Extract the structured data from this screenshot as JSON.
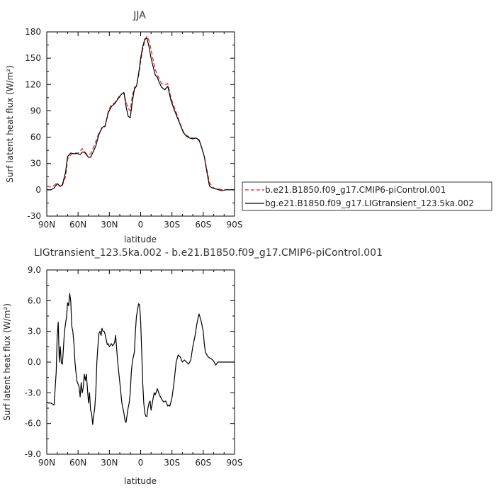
{
  "chart_data": [
    {
      "type": "line",
      "title": "JJA",
      "xlabel": "latitude",
      "ylabel": "Surf latent heat flux (W/m²)",
      "xlim": [
        90,
        -90
      ],
      "ylim": [
        -30,
        180
      ],
      "xticks": [
        90,
        60,
        30,
        0,
        -30,
        -60,
        -90
      ],
      "xticklabels": [
        "90N",
        "60N",
        "30N",
        "0",
        "30S",
        "60S",
        "90S"
      ],
      "yticks": [
        -30,
        0,
        30,
        60,
        90,
        120,
        150,
        180
      ],
      "yticklabels": [
        "-30",
        "0",
        "30",
        "60",
        "90",
        "120",
        "150",
        "180"
      ],
      "series": [
        {
          "name": "b.e21.B1850.f09_g17.CMIP6-piControl.001",
          "color": "#e41a1c",
          "dash": "dashed",
          "x": [
            90,
            86,
            83,
            80,
            77,
            75,
            72,
            70,
            67,
            64,
            62,
            60,
            58,
            56,
            54,
            52,
            50,
            48,
            46,
            43,
            40,
            37,
            34,
            31,
            28,
            25,
            22,
            19,
            16,
            14,
            12,
            10,
            8,
            6,
            4,
            2,
            0,
            -2,
            -4,
            -6,
            -8,
            -10,
            -12,
            -14,
            -16,
            -18,
            -20,
            -23,
            -26,
            -29,
            -32,
            -35,
            -38,
            -41,
            -44,
            -47,
            -50,
            -53,
            -56,
            -58,
            -61,
            -64,
            -66,
            -69,
            -72,
            -75,
            -78,
            -81,
            -84,
            -87,
            -90
          ],
          "values": [
            4,
            3,
            5,
            8,
            3,
            5,
            15,
            35,
            40,
            42,
            41,
            42,
            44,
            47,
            44,
            41,
            40,
            41,
            46,
            55,
            65,
            70,
            72,
            90,
            97,
            99,
            104,
            109,
            110,
            100,
            93,
            90,
            107,
            117,
            118,
            130,
            146,
            160,
            170,
            175,
            170,
            160,
            148,
            137,
            131,
            126,
            121,
            120,
            121,
            105,
            95,
            85,
            75,
            66,
            62,
            60,
            59,
            59,
            56,
            50,
            38,
            20,
            8,
            3,
            1,
            1,
            0,
            0,
            0,
            0,
            0
          ]
        },
        {
          "name": "bg.e21.B1850.f09_g17.LIGtransient_123.5ka.002",
          "color": "#000000",
          "dash": "solid",
          "x": [
            90,
            86,
            83,
            80,
            77,
            75,
            72,
            70,
            67,
            64,
            62,
            60,
            58,
            56,
            54,
            52,
            50,
            48,
            46,
            43,
            40,
            37,
            34,
            31,
            28,
            25,
            22,
            19,
            16,
            14,
            12,
            10,
            8,
            6,
            4,
            2,
            0,
            -2,
            -4,
            -6,
            -8,
            -10,
            -12,
            -14,
            -16,
            -18,
            -20,
            -23,
            -26,
            -29,
            -32,
            -35,
            -38,
            -41,
            -44,
            -47,
            -50,
            -53,
            -56,
            -58,
            -61,
            -64,
            -66,
            -69,
            -72,
            -75,
            -78,
            -81,
            -84,
            -87,
            -90
          ],
          "values": [
            0,
            0,
            2,
            7,
            4,
            6,
            20,
            38,
            42,
            41,
            42,
            41,
            40,
            43,
            43,
            40,
            37,
            37,
            42,
            50,
            63,
            71,
            73,
            88,
            95,
            98,
            103,
            108,
            111,
            95,
            84,
            82,
            100,
            115,
            118,
            132,
            150,
            163,
            172,
            173,
            163,
            150,
            140,
            131,
            128,
            122,
            117,
            114,
            118,
            102,
            92,
            83,
            74,
            65,
            61,
            59,
            58,
            59,
            57,
            50,
            38,
            17,
            4,
            2,
            1,
            0,
            -1,
            0,
            0,
            0,
            0
          ]
        }
      ],
      "legend": "right"
    },
    {
      "type": "line",
      "title": "LIGtransient_123.5ka.002 - b.e21.B1850.f09_g17.CMIP6-piControl.001",
      "xlabel": "latitude",
      "ylabel": "Surf latent heat flux (W/m²)",
      "xlim": [
        90,
        -90
      ],
      "ylim": [
        -9,
        9
      ],
      "xticks": [
        90,
        60,
        30,
        0,
        -30,
        -60,
        -90
      ],
      "xticklabels": [
        "90N",
        "60N",
        "30N",
        "0",
        "30S",
        "60S",
        "90S"
      ],
      "yticks": [
        -9,
        -6,
        -3,
        0,
        3,
        6,
        9
      ],
      "yticklabels": [
        "-9.0",
        "-6.0",
        "-3.0",
        "0.0",
        "3.0",
        "6.0",
        "9.0"
      ],
      "series": [
        {
          "color": "#000000",
          "x": [
            90,
            88,
            86,
            83,
            81,
            80,
            79,
            78,
            77,
            76,
            75,
            73,
            71,
            70,
            69,
            68,
            67,
            66,
            65,
            64,
            63,
            62,
            61,
            59,
            58,
            57,
            56,
            55,
            54,
            53,
            52,
            50,
            49,
            48,
            47,
            46,
            45,
            44,
            43,
            42,
            41,
            40,
            39,
            38,
            37,
            36,
            35,
            34,
            32,
            31,
            30,
            28,
            27,
            26,
            25,
            24,
            22,
            20,
            18,
            16,
            15,
            14,
            12,
            11,
            10,
            9,
            8,
            7,
            6,
            5,
            4,
            2,
            1,
            0,
            -1,
            -2,
            -3,
            -4,
            -5,
            -6,
            -7,
            -8,
            -9,
            -10,
            -12,
            -13,
            -14,
            -16,
            -18,
            -20,
            -22,
            -24,
            -26,
            -27,
            -28,
            -30,
            -32,
            -34,
            -36,
            -38,
            -40,
            -42,
            -44,
            -46,
            -48,
            -50,
            -52,
            -54,
            -56,
            -58,
            -60,
            -61,
            -62,
            -64,
            -66,
            -68,
            -70,
            -72,
            -74,
            -76,
            -78,
            -80,
            -82,
            -84,
            -86,
            -88,
            -90
          ],
          "values": [
            -3.9,
            -4.0,
            -4.0,
            -4.2,
            -1.0,
            2.5,
            3.9,
            0.0,
            1.5,
            -0.1,
            -0.2,
            3.0,
            4.5,
            5.8,
            5.5,
            6.7,
            5.9,
            3.5,
            3.0,
            1.8,
            0.0,
            -1.0,
            -1.9,
            -2.4,
            -3.4,
            -2.0,
            -3.0,
            -2.5,
            -1.2,
            -1.8,
            -1.2,
            -4.0,
            -3.0,
            -4.7,
            -5.0,
            -6.1,
            -5.2,
            -4.5,
            -3.0,
            0.0,
            1.5,
            2.8,
            3.0,
            2.6,
            3.3,
            3.0,
            3.0,
            2.7,
            1.7,
            1.8,
            1.5,
            1.8,
            1.6,
            1.7,
            1.9,
            2.6,
            0.0,
            -2.0,
            -4.0,
            -5.0,
            -5.7,
            -5.9,
            -4.5,
            -4.0,
            -3.0,
            -1.0,
            0.0,
            0.5,
            1.0,
            3.0,
            4.5,
            5.7,
            5.6,
            4.0,
            1.0,
            -2.0,
            -4.0,
            -5.0,
            -5.3,
            -5.3,
            -4.5,
            -4.0,
            -3.8,
            -4.7,
            -3.5,
            -3.0,
            -3.2,
            -2.6,
            -3.2,
            -3.6,
            -3.9,
            -3.8,
            -4.3,
            -4.2,
            -4.3,
            -3.5,
            -2.0,
            0.0,
            0.7,
            0.5,
            0.0,
            0.2,
            0.0,
            -0.2,
            0.2,
            1.5,
            2.5,
            3.8,
            4.7,
            4.0,
            3.0,
            1.8,
            1.0,
            0.6,
            0.4,
            0.3,
            0.1,
            -0.3,
            0.0,
            0.0,
            0.0,
            0.0,
            0.0,
            0.0,
            0.0,
            0.0,
            0.0
          ]
        }
      ]
    }
  ]
}
